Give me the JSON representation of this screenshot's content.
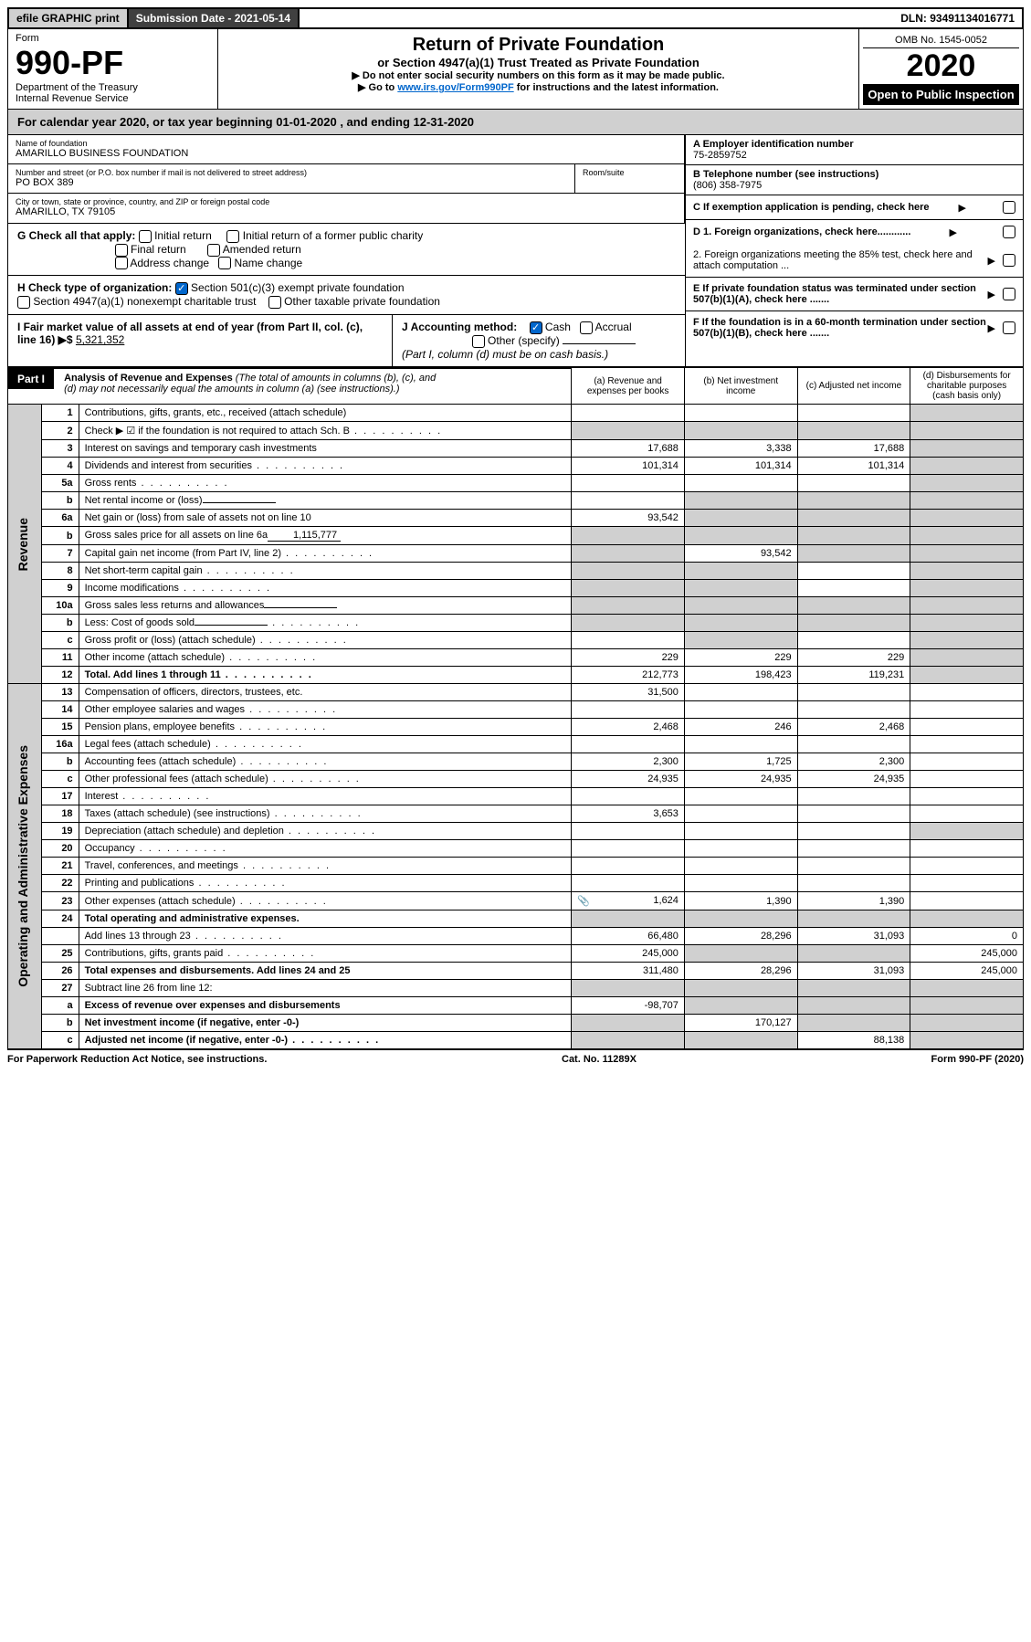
{
  "topbar": {
    "efile": "efile GRAPHIC print",
    "submission_label": "Submission Date - 2021-05-14",
    "dln_label": "DLN: 93491134016771"
  },
  "header": {
    "form_word": "Form",
    "form_num": "990-PF",
    "dept": "Department of the Treasury",
    "irs": "Internal Revenue Service",
    "title": "Return of Private Foundation",
    "subtitle": "or Section 4947(a)(1) Trust Treated as Private Foundation",
    "instr1": "▶ Do not enter social security numbers on this form as it may be made public.",
    "instr2_pre": "▶ Go to ",
    "instr2_link": "www.irs.gov/Form990PF",
    "instr2_post": " for instructions and the latest information.",
    "omb": "OMB No. 1545-0052",
    "year": "2020",
    "inspect": "Open to Public Inspection"
  },
  "calyear": "For calendar year 2020, or tax year beginning 01-01-2020             , and ending 12-31-2020",
  "foundation": {
    "name_label": "Name of foundation",
    "name": "AMARILLO BUSINESS FOUNDATION",
    "addr_label": "Number and street (or P.O. box number if mail is not delivered to street address)",
    "addr": "PO BOX 389",
    "room_label": "Room/suite",
    "city_label": "City or town, state or province, country, and ZIP or foreign postal code",
    "city": "AMARILLO, TX  79105"
  },
  "right_info": {
    "a_label": "A Employer identification number",
    "a_val": "75-2859752",
    "b_label": "B Telephone number (see instructions)",
    "b_val": "(806) 358-7975",
    "c_label": "C If exemption application is pending, check here",
    "d1": "D 1. Foreign organizations, check here............",
    "d2": "2. Foreign organizations meeting the 85% test, check here and attach computation ...",
    "e": "E  If private foundation status was terminated under section 507(b)(1)(A), check here .......",
    "f": "F  If the foundation is in a 60-month termination under section 507(b)(1)(B), check here .......",
    "arrow": "▶"
  },
  "g": {
    "label": "G Check all that apply:",
    "initial": "Initial return",
    "final": "Final return",
    "addr_change": "Address change",
    "initial_former": "Initial return of a former public charity",
    "amended": "Amended return",
    "name_change": "Name change"
  },
  "h": {
    "label": "H Check type of organization:",
    "opt1": "Section 501(c)(3) exempt private foundation",
    "opt2": "Section 4947(a)(1) nonexempt charitable trust",
    "opt3": "Other taxable private foundation"
  },
  "i": {
    "label": "I Fair market value of all assets at end of year (from Part II, col. (c), line 16) ▶$",
    "val": "5,321,352"
  },
  "j": {
    "label": "J Accounting method:",
    "cash": "Cash",
    "accrual": "Accrual",
    "other": "Other (specify)",
    "note": "(Part I, column (d) must be on cash basis.)"
  },
  "part1": {
    "label": "Part I",
    "title": "Analysis of Revenue and Expenses",
    "title_note": " (The total of amounts in columns (b), (c), and (d) may not necessarily equal the amounts in column (a) (see instructions).)",
    "col_a": "(a)  Revenue and expenses per books",
    "col_b": "(b)  Net investment income",
    "col_c": "(c)  Adjusted net income",
    "col_d": "(d)  Disbursements for charitable purposes (cash basis only)"
  },
  "side_labels": {
    "revenue": "Revenue",
    "expenses": "Operating and Administrative Expenses"
  },
  "rows": [
    {
      "n": "1",
      "desc": "Contributions, gifts, grants, etc., received (attach schedule)",
      "a": "",
      "b": "",
      "c": "",
      "d": "",
      "shade_d": true
    },
    {
      "n": "2",
      "desc": "Check ▶ ☑ if the foundation is not required to attach Sch. B",
      "dots": true,
      "a": "",
      "b": "",
      "c": "",
      "d": "",
      "shade_all": true,
      "bold_not": true
    },
    {
      "n": "3",
      "desc": "Interest on savings and temporary cash investments",
      "a": "17,688",
      "b": "3,338",
      "c": "17,688",
      "d": "",
      "shade_d": true
    },
    {
      "n": "4",
      "desc": "Dividends and interest from securities",
      "dots": true,
      "a": "101,314",
      "b": "101,314",
      "c": "101,314",
      "d": "",
      "shade_d": true
    },
    {
      "n": "5a",
      "desc": "Gross rents",
      "dots": true,
      "a": "",
      "b": "",
      "c": "",
      "d": "",
      "shade_d": true
    },
    {
      "n": "b",
      "desc": "Net rental income or (loss)",
      "sub": true,
      "a": "",
      "b": "",
      "c": "",
      "d": "",
      "shade_bcd": true
    },
    {
      "n": "6a",
      "desc": "Net gain or (loss) from sale of assets not on line 10",
      "a": "93,542",
      "b": "",
      "c": "",
      "d": "",
      "shade_bcd": true
    },
    {
      "n": "b",
      "desc": "Gross sales price for all assets on line 6a",
      "sub_val": "1,115,777",
      "a": "",
      "b": "",
      "c": "",
      "d": "",
      "shade_all": true
    },
    {
      "n": "7",
      "desc": "Capital gain net income (from Part IV, line 2)",
      "dots": true,
      "a": "",
      "b": "93,542",
      "c": "",
      "d": "",
      "shade_a": true,
      "shade_cd": true
    },
    {
      "n": "8",
      "desc": "Net short-term capital gain",
      "dots": true,
      "a": "",
      "b": "",
      "c": "",
      "d": "",
      "shade_ab": true,
      "shade_d": true
    },
    {
      "n": "9",
      "desc": "Income modifications",
      "dots": true,
      "a": "",
      "b": "",
      "c": "",
      "d": "",
      "shade_ab": true,
      "shade_d": true
    },
    {
      "n": "10a",
      "desc": "Gross sales less returns and allowances",
      "sub": true,
      "a": "",
      "b": "",
      "c": "",
      "d": "",
      "shade_all": true
    },
    {
      "n": "b",
      "desc": "Less: Cost of goods sold",
      "dots": true,
      "sub": true,
      "a": "",
      "b": "",
      "c": "",
      "d": "",
      "shade_all": true
    },
    {
      "n": "c",
      "desc": "Gross profit or (loss) (attach schedule)",
      "dots": true,
      "a": "",
      "b": "",
      "c": "",
      "d": "",
      "shade_b": true,
      "shade_d": true
    },
    {
      "n": "11",
      "desc": "Other income (attach schedule)",
      "dots": true,
      "a": "229",
      "b": "229",
      "c": "229",
      "d": "",
      "shade_d": true
    },
    {
      "n": "12",
      "desc": "Total. Add lines 1 through 11",
      "dots": true,
      "bold": true,
      "a": "212,773",
      "b": "198,423",
      "c": "119,231",
      "d": "",
      "shade_d": true
    }
  ],
  "exp_rows": [
    {
      "n": "13",
      "desc": "Compensation of officers, directors, trustees, etc.",
      "a": "31,500",
      "b": "",
      "c": "",
      "d": ""
    },
    {
      "n": "14",
      "desc": "Other employee salaries and wages",
      "dots": true,
      "a": "",
      "b": "",
      "c": "",
      "d": ""
    },
    {
      "n": "15",
      "desc": "Pension plans, employee benefits",
      "dots": true,
      "a": "2,468",
      "b": "246",
      "c": "2,468",
      "d": ""
    },
    {
      "n": "16a",
      "desc": "Legal fees (attach schedule)",
      "dots": true,
      "a": "",
      "b": "",
      "c": "",
      "d": ""
    },
    {
      "n": "b",
      "desc": "Accounting fees (attach schedule)",
      "dots": true,
      "a": "2,300",
      "b": "1,725",
      "c": "2,300",
      "d": ""
    },
    {
      "n": "c",
      "desc": "Other professional fees (attach schedule)",
      "dots": true,
      "a": "24,935",
      "b": "24,935",
      "c": "24,935",
      "d": ""
    },
    {
      "n": "17",
      "desc": "Interest",
      "dots": true,
      "a": "",
      "b": "",
      "c": "",
      "d": ""
    },
    {
      "n": "18",
      "desc": "Taxes (attach schedule) (see instructions)",
      "dots": true,
      "a": "3,653",
      "b": "",
      "c": "",
      "d": ""
    },
    {
      "n": "19",
      "desc": "Depreciation (attach schedule) and depletion",
      "dots": true,
      "a": "",
      "b": "",
      "c": "",
      "d": "",
      "shade_d": true
    },
    {
      "n": "20",
      "desc": "Occupancy",
      "dots": true,
      "a": "",
      "b": "",
      "c": "",
      "d": ""
    },
    {
      "n": "21",
      "desc": "Travel, conferences, and meetings",
      "dots": true,
      "a": "",
      "b": "",
      "c": "",
      "d": ""
    },
    {
      "n": "22",
      "desc": "Printing and publications",
      "dots": true,
      "a": "",
      "b": "",
      "c": "",
      "d": ""
    },
    {
      "n": "23",
      "desc": "Other expenses (attach schedule)",
      "dots": true,
      "icon": "📎",
      "a": "1,624",
      "b": "1,390",
      "c": "1,390",
      "d": ""
    },
    {
      "n": "24",
      "desc": "Total operating and administrative expenses.",
      "bold": true,
      "a": "",
      "b": "",
      "c": "",
      "d": "",
      "shade_all": true
    },
    {
      "n": "",
      "desc": "Add lines 13 through 23",
      "dots": true,
      "a": "66,480",
      "b": "28,296",
      "c": "31,093",
      "d": "0"
    },
    {
      "n": "25",
      "desc": "Contributions, gifts, grants paid",
      "dots": true,
      "a": "245,000",
      "b": "",
      "c": "",
      "d": "245,000",
      "shade_bc": true
    },
    {
      "n": "26",
      "desc": "Total expenses and disbursements. Add lines 24 and 25",
      "bold": true,
      "a": "311,480",
      "b": "28,296",
      "c": "31,093",
      "d": "245,000"
    },
    {
      "n": "27",
      "desc": "Subtract line 26 from line 12:",
      "a": "",
      "b": "",
      "c": "",
      "d": "",
      "shade_all": true
    },
    {
      "n": "a",
      "desc": "Excess of revenue over expenses and disbursements",
      "bold": true,
      "a": "-98,707",
      "b": "",
      "c": "",
      "d": "",
      "shade_bcd": true
    },
    {
      "n": "b",
      "desc": "Net investment income (if negative, enter -0-)",
      "bold": true,
      "a": "",
      "b": "170,127",
      "c": "",
      "d": "",
      "shade_a": true,
      "shade_cd": true
    },
    {
      "n": "c",
      "desc": "Adjusted net income (if negative, enter -0-)",
      "bold": true,
      "dots": true,
      "a": "",
      "b": "",
      "c": "88,138",
      "d": "",
      "shade_ab": true,
      "shade_d": true
    }
  ],
  "footer": {
    "left": "For Paperwork Reduction Act Notice, see instructions.",
    "center": "Cat. No. 11289X",
    "right": "Form 990-PF (2020)"
  }
}
